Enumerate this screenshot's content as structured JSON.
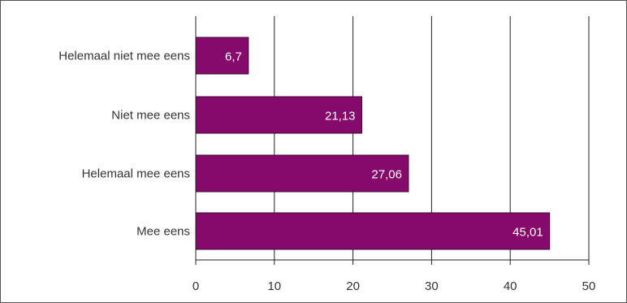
{
  "chart_data": {
    "type": "bar",
    "orientation": "horizontal",
    "categories": [
      "Helemaal niet mee eens",
      "Niet mee eens",
      "Helemaal mee eens",
      "Mee eens"
    ],
    "values": [
      6.7,
      21.13,
      27.06,
      45.01
    ],
    "value_labels": [
      "6,7",
      "21,13",
      "27,06",
      "45,01"
    ],
    "xlim": [
      0,
      50
    ],
    "x_ticks": [
      0,
      10,
      20,
      30,
      40,
      50
    ],
    "x_tick_labels": [
      "0",
      "10",
      "20",
      "30",
      "40",
      "50"
    ],
    "grid": true,
    "title": "",
    "xlabel": "",
    "ylabel": ""
  },
  "colors": {
    "bar": "#850a6c",
    "bar_stroke": "#3a0a30",
    "grid": "#222222",
    "frame": "#555555"
  }
}
